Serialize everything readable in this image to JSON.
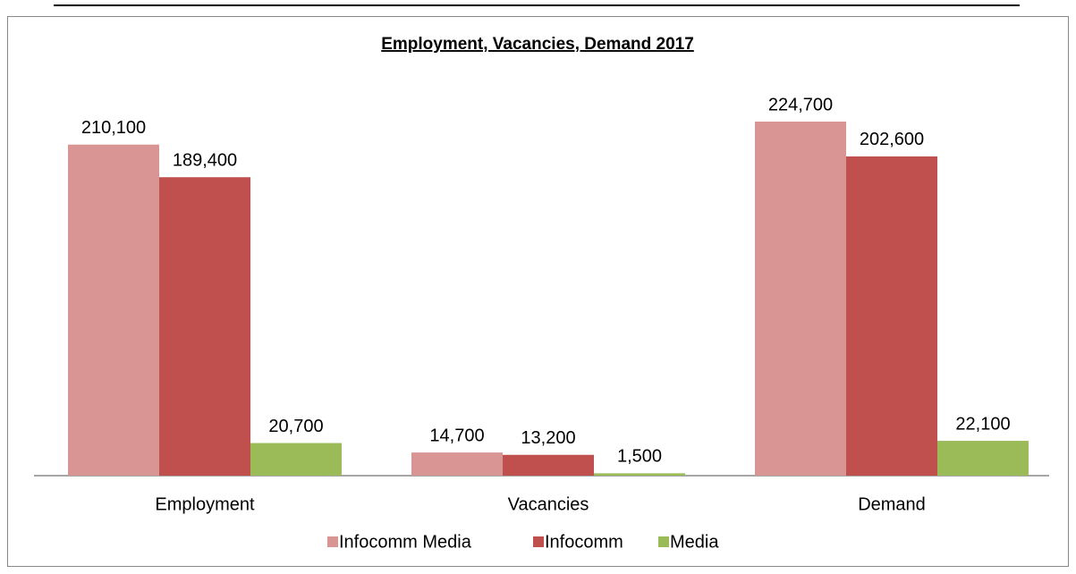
{
  "chart_data": {
    "type": "bar",
    "title": "Employment, Vacancies, Demand 2017",
    "categories": [
      "Employment",
      "Vacancies",
      "Demand"
    ],
    "series": [
      {
        "name": "Infocomm Media",
        "color": "#d99594",
        "values": [
          210100,
          14700,
          224700
        ],
        "value_labels": [
          "210,100",
          "14,700",
          "224,700"
        ]
      },
      {
        "name": "Infocomm",
        "color": "#c0504d",
        "values": [
          189400,
          13200,
          202600
        ],
        "value_labels": [
          "189,400",
          "13,200",
          "202,600"
        ]
      },
      {
        "name": "Media",
        "color": "#9bbb59",
        "values": [
          20700,
          1500,
          22100
        ],
        "value_labels": [
          "20,700",
          "1,500",
          "22,100"
        ]
      }
    ],
    "legend": "bottom"
  }
}
